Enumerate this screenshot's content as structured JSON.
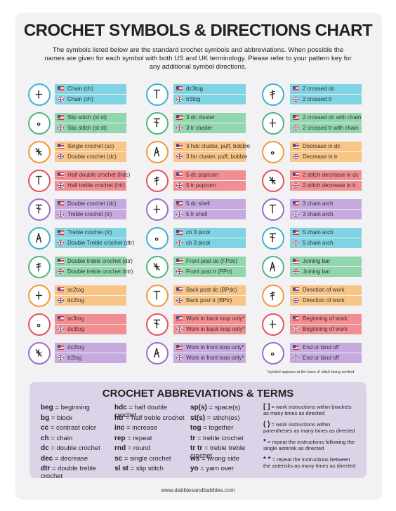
{
  "header": {
    "title": "CROCHET SYMBOLS & DIRECTIONS CHART",
    "intro": "The symbols listed below are the standard crochet symbols and abbreviations. When possible the names are given for each symbol with both US and UK terminology. Please refer to your pattern key for any additional symbol directions."
  },
  "symbols": {
    "columns": [
      [
        {
          "us": "Chain (ch)",
          "uk": "Chain (ch)"
        },
        {
          "us": "Slip stitch (sl st)",
          "uk": "Slip stitch (sl st)"
        },
        {
          "us": "Single crochet (sc)",
          "uk": "Double crochet (dc)"
        },
        {
          "us": "Half double crochet (hdc)",
          "uk": "Half treble crochet (htr)"
        },
        {
          "us": "Double crochet (dc)",
          "uk": "Treble crochet (tr)"
        },
        {
          "us": "Treble crochet (tr)",
          "uk": "Double Treble crochet (dtr)"
        },
        {
          "us": "Double treble crochet (dtr)",
          "uk": "Double treble crochet (trtr)"
        },
        {
          "us": "sc2tog",
          "uk": "dc2tog"
        },
        {
          "us": "sc3tog",
          "uk": "dc3tog"
        },
        {
          "us": "dc2tog",
          "uk": "tr2tog"
        }
      ],
      [
        {
          "us": "dc3tog",
          "uk": "tr3tog"
        },
        {
          "us": "3 dc cluster",
          "uk": "3 tr cluster"
        },
        {
          "us": "3 hdc cluster, puff, bobble",
          "uk": "3 htr cluster, puff, bobble"
        },
        {
          "us": "5 dc popcorn",
          "uk": "5 tr popcorn"
        },
        {
          "us": "5 dc shell",
          "uk": "5 tr shell"
        },
        {
          "us": "ch 3 picot",
          "uk": "ch 3 picot"
        },
        {
          "us": "Front post dc (FPdc)",
          "uk": "Front post tr (FPtr)"
        },
        {
          "us": "Back post dc (BPdc)",
          "uk": "Back post tr (BPtr)"
        },
        {
          "us": "Work in back loop only*",
          "uk": "Work in back loop only*"
        },
        {
          "us": "Work in front loop only*",
          "uk": "Work in front loop only*"
        }
      ],
      [
        {
          "us": "2 crossed dc",
          "uk": "2 crossed tr"
        },
        {
          "us": "2 crossed dc with chain",
          "uk": "2 crossed tr with chain"
        },
        {
          "us": "Decrease in dc",
          "uk": "Decrease in tr"
        },
        {
          "us": "2 stitch decrease in dc",
          "uk": "2 stitch decrease in tr"
        },
        {
          "us": "3 chain arch",
          "uk": "3 chain arch"
        },
        {
          "us": "5 chain arch",
          "uk": "5 chain arch"
        },
        {
          "us": "Joining bar",
          "uk": "Joining bar"
        },
        {
          "us": "Direction of work",
          "uk": "Direction of work"
        },
        {
          "us": "Beginning of work",
          "uk": "Beginning of work"
        },
        {
          "us": "End or bind off",
          "uk": "End or bind off"
        }
      ]
    ],
    "footnote": "*symbol appears at the base of stitch being worked"
  },
  "abbreviations": {
    "title": "CROCHET ABBREVIATIONS & TERMS",
    "columns": [
      [
        {
          "term": "beg",
          "text": "= beginning"
        },
        {
          "term": "bg",
          "text": "= block"
        },
        {
          "term": "cc",
          "text": "= contrast color"
        },
        {
          "term": "ch",
          "text": "= chain"
        },
        {
          "term": "dc",
          "text": "= double crochet"
        },
        {
          "term": "dec",
          "text": "= decrease"
        },
        {
          "term": "dtr",
          "text": "= double treble crochet"
        }
      ],
      [
        {
          "term": "hdc",
          "text": "= half double crochet"
        },
        {
          "term": "htr",
          "text": "= half treble crochet"
        },
        {
          "term": "inc",
          "text": "= increase"
        },
        {
          "term": "rep",
          "text": "= repeat"
        },
        {
          "term": "rnd",
          "text": "= round"
        },
        {
          "term": "sc",
          "text": "= single crochet"
        },
        {
          "term": "sl st",
          "text": "= slip stitch"
        }
      ],
      [
        {
          "term": "sp(s)",
          "text": "= space(s)"
        },
        {
          "term": "st(s)",
          "text": "= stitch(es)"
        },
        {
          "term": "tog",
          "text": "= together"
        },
        {
          "term": "tr",
          "text": "= treble crochet"
        },
        {
          "term": "tr tr",
          "text": "= treble treble crochet"
        },
        {
          "term": "ws",
          "text": "= wrong side"
        },
        {
          "term": "yo",
          "text": "= yarn over"
        }
      ],
      [
        {
          "term": "[ ]",
          "text": "= work instructions within brackets as many times as directed"
        },
        {
          "term": "( )",
          "text": "= work instructions within parentheses as many times as directed"
        },
        {
          "term": "*",
          "text": "= repeat the instructions following the single asterisk as directed"
        },
        {
          "term": "* *",
          "text": "= repeat the instructions between the asterisks as many times as directed"
        }
      ]
    ]
  },
  "footer": {
    "url": "www.dabblesandbabbles.com"
  }
}
